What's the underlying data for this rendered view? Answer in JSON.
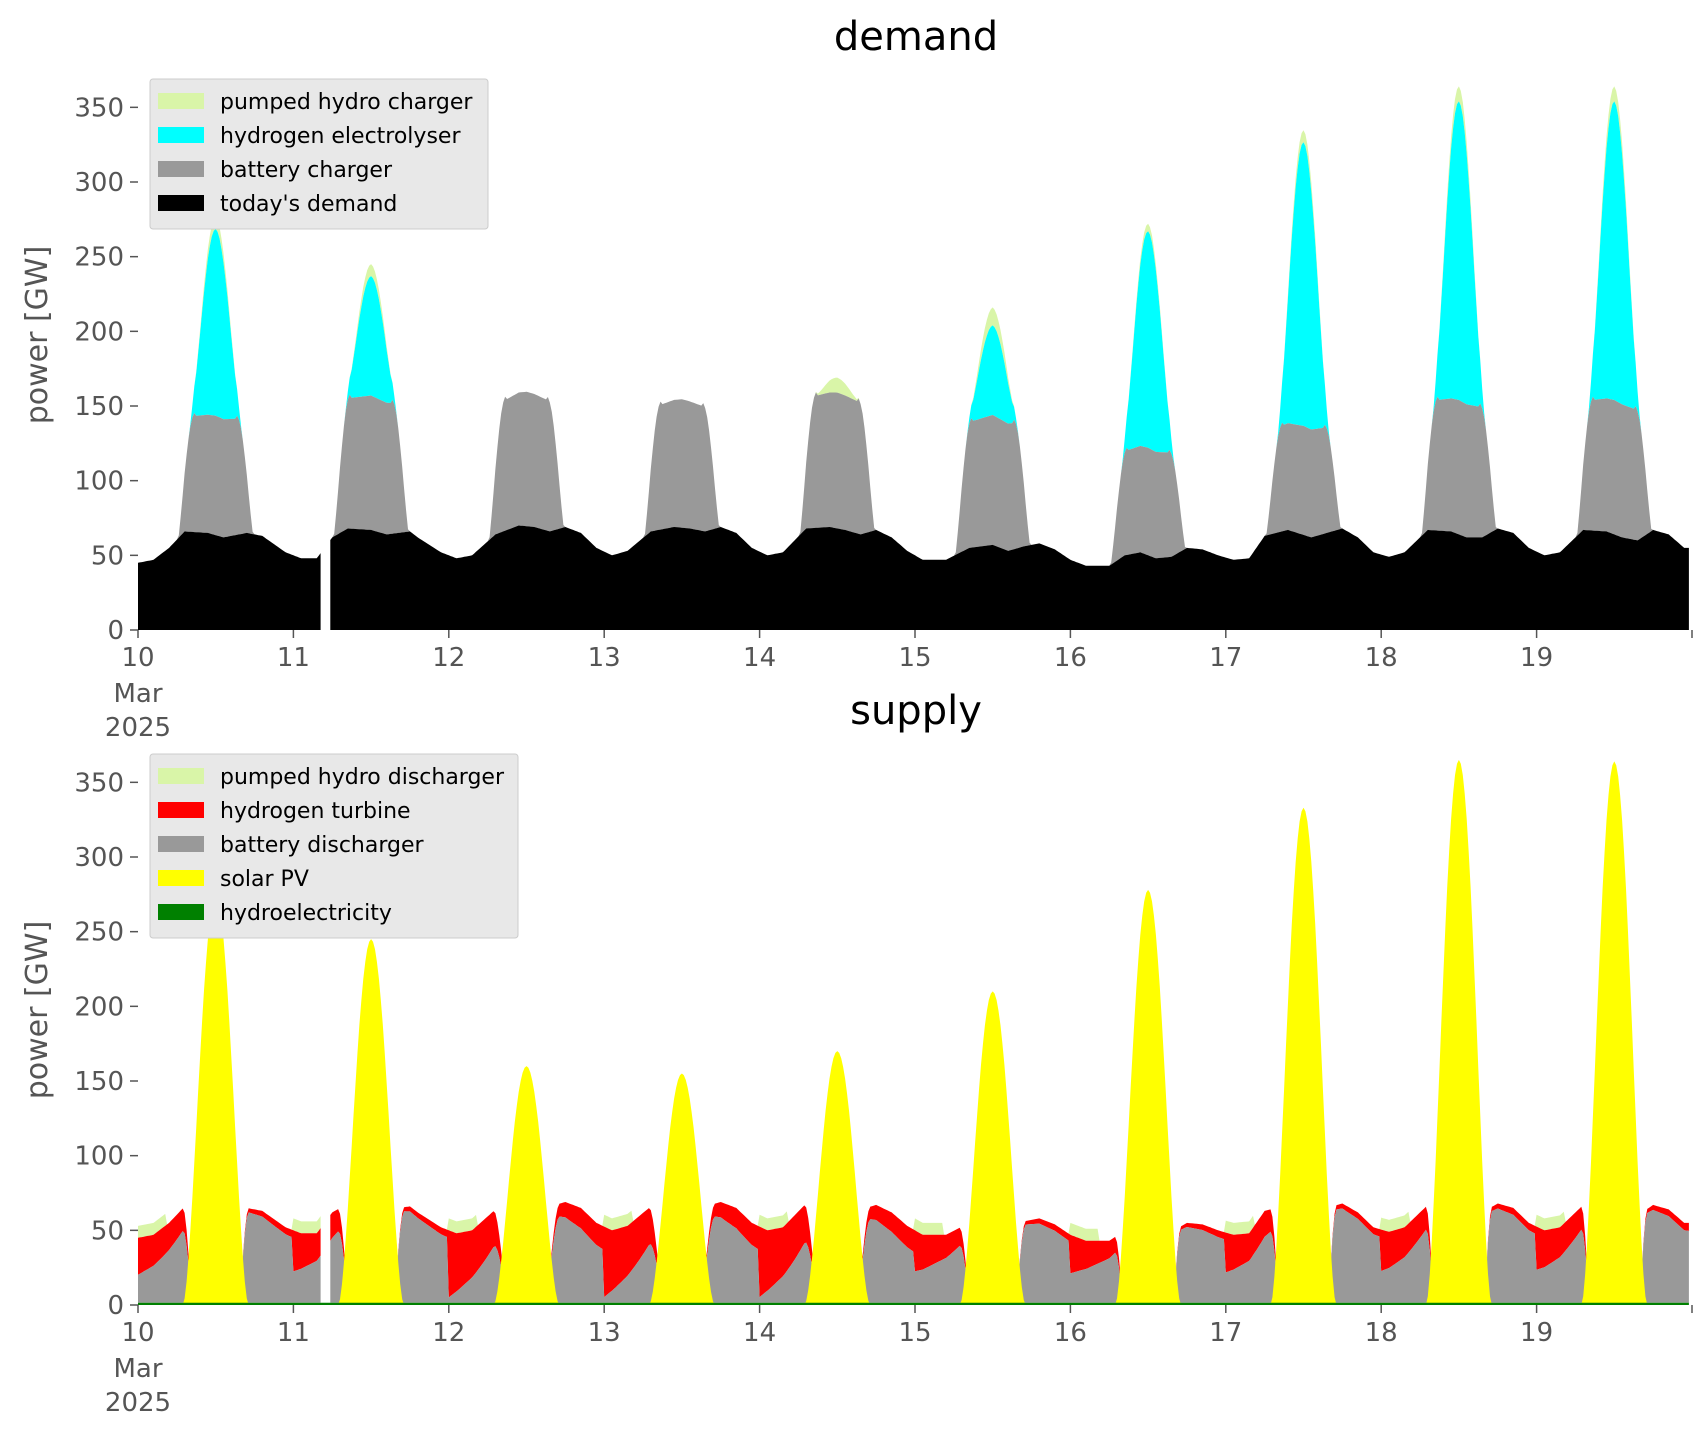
{
  "chart_data": [
    {
      "type": "area",
      "title": "demand",
      "xlabel": "",
      "ylabel": "power [GW]",
      "xlim": [
        10,
        20
      ],
      "ylim": [
        0,
        375
      ],
      "x_ticks": [
        "10",
        "11",
        "12",
        "13",
        "14",
        "15",
        "16",
        "17",
        "18",
        "19"
      ],
      "x_tick_sublabel": [
        "Mar",
        "2025"
      ],
      "y_ticks": [
        0,
        50,
        100,
        150,
        200,
        250,
        300,
        350
      ],
      "grid": false,
      "legend_position": "top-left",
      "gap": [
        11.18,
        11.23
      ],
      "base_demand": [
        [
          10.0,
          45
        ],
        [
          10.1,
          47
        ],
        [
          10.2,
          55
        ],
        [
          10.3,
          66
        ],
        [
          10.45,
          65
        ],
        [
          10.55,
          62
        ],
        [
          10.7,
          65
        ],
        [
          10.8,
          63
        ],
        [
          10.95,
          52
        ],
        [
          11.05,
          48
        ],
        [
          11.15,
          48
        ],
        [
          11.25,
          62
        ],
        [
          11.35,
          68
        ],
        [
          11.5,
          67
        ],
        [
          11.6,
          64
        ],
        [
          11.75,
          66
        ],
        [
          11.8,
          62
        ],
        [
          11.95,
          52
        ],
        [
          12.05,
          48
        ],
        [
          12.15,
          50
        ],
        [
          12.3,
          64
        ],
        [
          12.45,
          70
        ],
        [
          12.55,
          69
        ],
        [
          12.65,
          66
        ],
        [
          12.75,
          69
        ],
        [
          12.85,
          65
        ],
        [
          12.95,
          55
        ],
        [
          13.05,
          50
        ],
        [
          13.15,
          53
        ],
        [
          13.3,
          66
        ],
        [
          13.45,
          69
        ],
        [
          13.55,
          68
        ],
        [
          13.65,
          66
        ],
        [
          13.75,
          69
        ],
        [
          13.85,
          65
        ],
        [
          13.95,
          55
        ],
        [
          14.05,
          50
        ],
        [
          14.15,
          52
        ],
        [
          14.3,
          68
        ],
        [
          14.45,
          69
        ],
        [
          14.55,
          67
        ],
        [
          14.65,
          64
        ],
        [
          14.75,
          67
        ],
        [
          14.85,
          62
        ],
        [
          14.95,
          53
        ],
        [
          15.05,
          47
        ],
        [
          15.2,
          47
        ],
        [
          15.35,
          55
        ],
        [
          15.5,
          57
        ],
        [
          15.6,
          53
        ],
        [
          15.7,
          56
        ],
        [
          15.8,
          58
        ],
        [
          15.9,
          54
        ],
        [
          16.0,
          47
        ],
        [
          16.1,
          43
        ],
        [
          16.25,
          43
        ],
        [
          16.35,
          50
        ],
        [
          16.45,
          52
        ],
        [
          16.55,
          48
        ],
        [
          16.65,
          49
        ],
        [
          16.75,
          55
        ],
        [
          16.85,
          54
        ],
        [
          16.95,
          50
        ],
        [
          17.05,
          47
        ],
        [
          17.15,
          48
        ],
        [
          17.25,
          63
        ],
        [
          17.4,
          67
        ],
        [
          17.55,
          62
        ],
        [
          17.65,
          65
        ],
        [
          17.75,
          68
        ],
        [
          17.85,
          62
        ],
        [
          17.95,
          52
        ],
        [
          18.05,
          49
        ],
        [
          18.15,
          52
        ],
        [
          18.3,
          67
        ],
        [
          18.45,
          66
        ],
        [
          18.55,
          62
        ],
        [
          18.65,
          62
        ],
        [
          18.75,
          68
        ],
        [
          18.85,
          65
        ],
        [
          18.95,
          55
        ],
        [
          19.05,
          50
        ],
        [
          19.15,
          52
        ],
        [
          19.3,
          67
        ],
        [
          19.45,
          66
        ],
        [
          19.55,
          62
        ],
        [
          19.65,
          60
        ],
        [
          19.75,
          67
        ],
        [
          19.85,
          64
        ],
        [
          19.95,
          55
        ]
      ],
      "series": [
        {
          "name": "pumped hydro charger",
          "color": "#d9f5a8",
          "values": [
            [
              10.5,
              8
            ],
            [
              11.5,
              8
            ],
            [
              14.5,
              10
            ],
            [
              15.5,
              12
            ],
            [
              16.5,
              5
            ],
            [
              17.5,
              8
            ],
            [
              18.5,
              10
            ],
            [
              19.5,
              10
            ]
          ]
        },
        {
          "name": "hydrogen electrolyser",
          "color": "#00ffff",
          "values": [
            [
              10.5,
              125
            ],
            [
              11.5,
              80
            ],
            [
              15.5,
              60
            ],
            [
              16.5,
              145
            ],
            [
              17.5,
              190
            ],
            [
              18.5,
              200
            ],
            [
              19.5,
              200
            ]
          ]
        },
        {
          "name": "battery charger",
          "color": "#999999",
          "values": [
            [
              10.5,
              80
            ],
            [
              11.5,
              90
            ],
            [
              12.5,
              90
            ],
            [
              13.5,
              86
            ],
            [
              14.5,
              91
            ],
            [
              15.5,
              87
            ],
            [
              16.5,
              72
            ],
            [
              17.5,
              73
            ],
            [
              18.5,
              90
            ],
            [
              19.5,
              90
            ]
          ]
        },
        {
          "name": "today's demand",
          "color": "#000000",
          "values": []
        }
      ]
    },
    {
      "type": "area",
      "title": "supply",
      "xlabel": "",
      "ylabel": "power [GW]",
      "xlim": [
        10,
        20
      ],
      "ylim": [
        0,
        375
      ],
      "x_ticks": [
        "10",
        "11",
        "12",
        "13",
        "14",
        "15",
        "16",
        "17",
        "18",
        "19"
      ],
      "x_tick_sublabel": [
        "Mar",
        "2025"
      ],
      "y_ticks": [
        0,
        50,
        100,
        150,
        200,
        250,
        300,
        350
      ],
      "grid": false,
      "legend_position": "top-left",
      "series": [
        {
          "name": "pumped hydro discharger",
          "color": "#d9f5a8",
          "values": []
        },
        {
          "name": "hydrogen turbine",
          "color": "#ff0000",
          "values": []
        },
        {
          "name": "battery discharger",
          "color": "#999999",
          "values": []
        },
        {
          "name": "solar PV",
          "color": "#ffff00",
          "peaks": [
            [
              10.5,
              275
            ],
            [
              11.5,
              245
            ],
            [
              12.5,
              160
            ],
            [
              13.5,
              155
            ],
            [
              14.5,
              170
            ],
            [
              15.5,
              210
            ],
            [
              16.5,
              278
            ],
            [
              17.5,
              333
            ],
            [
              18.5,
              365
            ],
            [
              19.5,
              364
            ]
          ]
        },
        {
          "name": "hydroelectricity",
          "color": "#008000",
          "values": []
        }
      ]
    }
  ]
}
